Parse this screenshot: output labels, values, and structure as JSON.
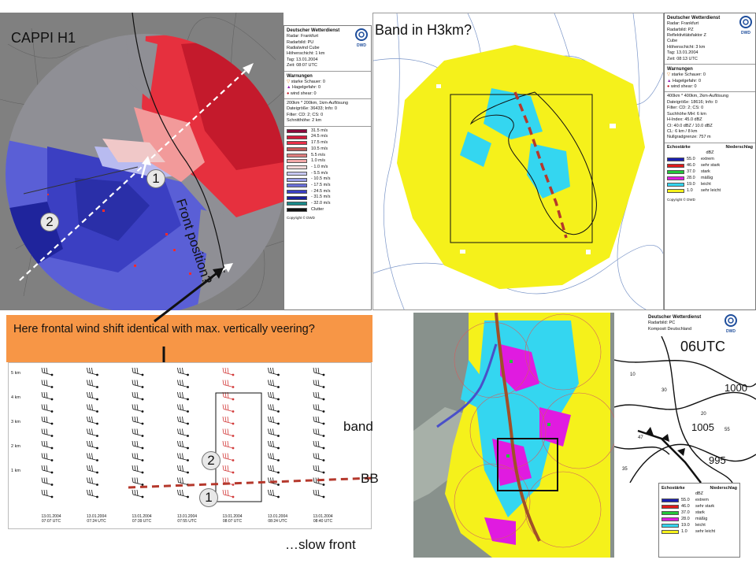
{
  "panel_cappi": {
    "title": "CAPPI H1",
    "front_label": "Front position?",
    "marker1": "1",
    "marker2": "2",
    "legend": {
      "org": "Deutscher Wetterdienst",
      "dwd": "DWD",
      "lines": [
        "Radar: Frankfurt",
        "Radarbild: PU",
        "Radialwind Cube",
        "Höhenschicht: 1 km",
        "Tag: 13.01.2004",
        "Zeit: 08:07 UTC"
      ],
      "warn_title": "Warnungen",
      "warnings": [
        "starke Schauer: 0",
        "Hagelgefahr: 0",
        "wind shear: 0"
      ],
      "info": [
        "200km * 200km, 1km-Auflösung",
        "Dateigröße: 36433; Info: 0",
        "Filter: CD: 2; CS: 0",
        "Schnitthöhe: 2 km"
      ],
      "scale": [
        {
          "v": "31.5 m/s",
          "c": "#8b0a3c"
        },
        {
          "v": "24.5 m/s",
          "c": "#d41a3c"
        },
        {
          "v": "17.5 m/s",
          "c": "#e8304a"
        },
        {
          "v": "10.5 m/s",
          "c": "#c65a5a"
        },
        {
          "v": "5.5 m/s",
          "c": "#e07e7e"
        },
        {
          "v": "1.0 m/s",
          "c": "#f2a8a8"
        },
        {
          "v": "- 1.0 m/s",
          "c": "#f3dada"
        },
        {
          "v": "- 5.5 m/s",
          "c": "#c7c8f2"
        },
        {
          "v": "- 10.5 m/s",
          "c": "#9a9ee6"
        },
        {
          "v": "- 17.5 m/s",
          "c": "#6a6fd8"
        },
        {
          "v": "- 24.5 m/s",
          "c": "#3a3fc4"
        },
        {
          "v": "- 31.5 m/s",
          "c": "#1a1f9a"
        },
        {
          "v": "- 32.0 m/s",
          "c": "#1a8a8a"
        },
        {
          "v": "Clutter",
          "c": "#111111"
        }
      ],
      "copyright": "Copyright © DWD"
    }
  },
  "panel_band": {
    "title": "Band in H3km?",
    "legend": {
      "org": "Deutscher Wetterdienst",
      "dwd": "DWD",
      "lines": [
        "Radar: Frankfurt",
        "Radarbild: PZ",
        "Reflektivitätsfaktor Z",
        "Cube",
        "Höhenschicht: 3 km",
        "Tag: 13.01.2004",
        "Zeit: 08:13 UTC"
      ],
      "warn_title": "Warnungen",
      "warnings": [
        "starke Schauer: 0",
        "Hagelgefahr: 0",
        "wind shear: 0"
      ],
      "info": [
        "400km * 400km, 2km-Auflösung",
        "Dateigröße: 18616; Info: 0",
        "Filter: CD: 2; CS: 0",
        "Suchhöhe MH: 6 km",
        "H-Index: 45.0 dBZ",
        "CI: 40.0 dBZ / 10.0 dBZ",
        "CL: 6 km / 8 km",
        "Nullgradgrenze: 757 m"
      ],
      "echo_head": "Echostärke",
      "precip_head": "Niederschlag",
      "unit": "dBZ",
      "scale": [
        {
          "v": "55.0",
          "d": "extrem",
          "c": "#1a1fb0"
        },
        {
          "v": "46.0",
          "d": "sehr stark",
          "c": "#e01b1b"
        },
        {
          "v": "37.0",
          "d": "stark",
          "c": "#22c63a"
        },
        {
          "v": "28.0",
          "d": "mäßig",
          "c": "#e01be0"
        },
        {
          "v": "19.0",
          "d": "leicht",
          "c": "#34d6f0"
        },
        {
          "v": "1.0",
          "d": "sehr leicht",
          "c": "#f5f11b"
        }
      ],
      "copyright": "Copyright © DWD"
    }
  },
  "callout": {
    "text": "Here frontal wind shift identical with max. vertically veering?"
  },
  "profiler": {
    "heights": [
      "5 km",
      "4 km",
      "3 km",
      "2 km",
      "1 km"
    ],
    "stamps": [
      {
        "date": "13.01.2004",
        "time": "07:07 UTC"
      },
      {
        "date": "13.01.2004",
        "time": "07:24 UTC"
      },
      {
        "date": "13.01.2004",
        "time": "07:39 UTC"
      },
      {
        "date": "13.01.2004",
        "time": "07:55 UTC"
      },
      {
        "date": "13.01.2004",
        "time": "08:07 UTC"
      },
      {
        "date": "13.01.2004",
        "time": "08:24 UTC"
      },
      {
        "date": "13.01.2004",
        "time": "08:40 UTC"
      }
    ],
    "marker1": "1",
    "marker2": "2"
  },
  "labels": {
    "band": "band",
    "bb": "BB",
    "slow_front": "…slow front",
    "time06": "06UTC"
  },
  "composite": {
    "legend": {
      "org": "Deutscher Wetterdienst",
      "dwd": "DWD",
      "lines": [
        "Radarbild: PC",
        "Komposit Deutschland"
      ],
      "echo_head": "Echostärke",
      "precip_head": "Niederschlag",
      "unit": "dBZ",
      "scale": [
        {
          "v": "55.0",
          "d": "extrem",
          "c": "#1a1fb0"
        },
        {
          "v": "46.0",
          "d": "sehr stark",
          "c": "#e01b1b"
        },
        {
          "v": "37.0",
          "d": "stark",
          "c": "#22c63a"
        },
        {
          "v": "28.0",
          "d": "mäßig",
          "c": "#e01be0"
        },
        {
          "v": "19.0",
          "d": "leicht",
          "c": "#34d6f0"
        },
        {
          "v": "1.0",
          "d": "sehr leicht",
          "c": "#f5f11b"
        }
      ]
    }
  },
  "synop": {
    "pressures": [
      "1000",
      "1005",
      "995"
    ]
  },
  "colors": {
    "callout": "#f79646",
    "band_dash": "#b5382c",
    "front_brown": "#a05028",
    "profile_wind_red": "#d23a3a"
  }
}
